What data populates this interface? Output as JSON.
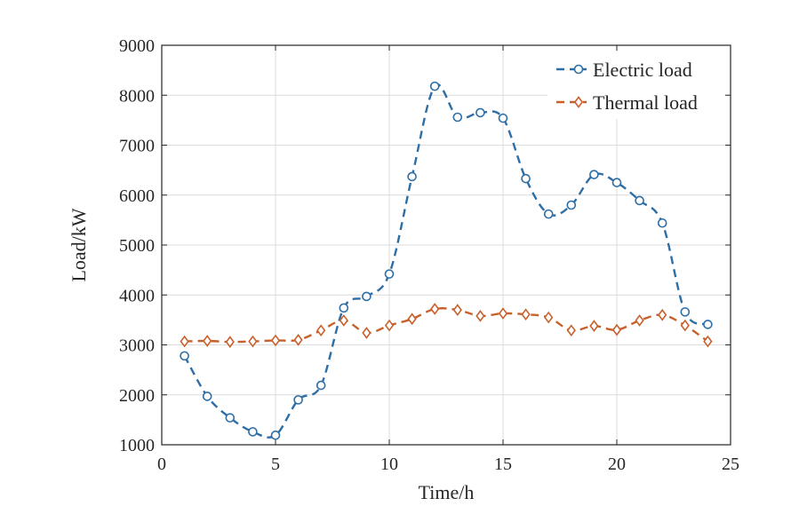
{
  "chart_data": {
    "type": "line",
    "xlabel": "Time/h",
    "ylabel": "Load/kW",
    "xlim": [
      0,
      25
    ],
    "ylim": [
      1000,
      9000
    ],
    "xticks": [
      0,
      5,
      10,
      15,
      20,
      25
    ],
    "yticks": [
      1000,
      2000,
      3000,
      4000,
      5000,
      6000,
      7000,
      8000,
      9000
    ],
    "grid": true,
    "legend_position": "top-right",
    "x": [
      1,
      2,
      3,
      4,
      5,
      6,
      7,
      8,
      9,
      10,
      11,
      12,
      13,
      14,
      15,
      16,
      17,
      18,
      19,
      20,
      21,
      22,
      23,
      24
    ],
    "series": [
      {
        "name": "Electric load",
        "color": "#2e6ea6",
        "marker": "circle",
        "values": [
          2780,
          1970,
          1540,
          1260,
          1190,
          1900,
          2190,
          3740,
          3970,
          4420,
          6370,
          8180,
          7560,
          7650,
          7540,
          6330,
          5620,
          5800,
          6410,
          6250,
          5890,
          5440,
          3660,
          3410
        ]
      },
      {
        "name": "Thermal load",
        "color": "#c8602c",
        "marker": "diamond",
        "values": [
          3070,
          3080,
          3060,
          3070,
          3090,
          3100,
          3290,
          3490,
          3240,
          3390,
          3520,
          3720,
          3700,
          3580,
          3630,
          3610,
          3550,
          3290,
          3380,
          3300,
          3490,
          3600,
          3390,
          3070
        ]
      }
    ]
  }
}
